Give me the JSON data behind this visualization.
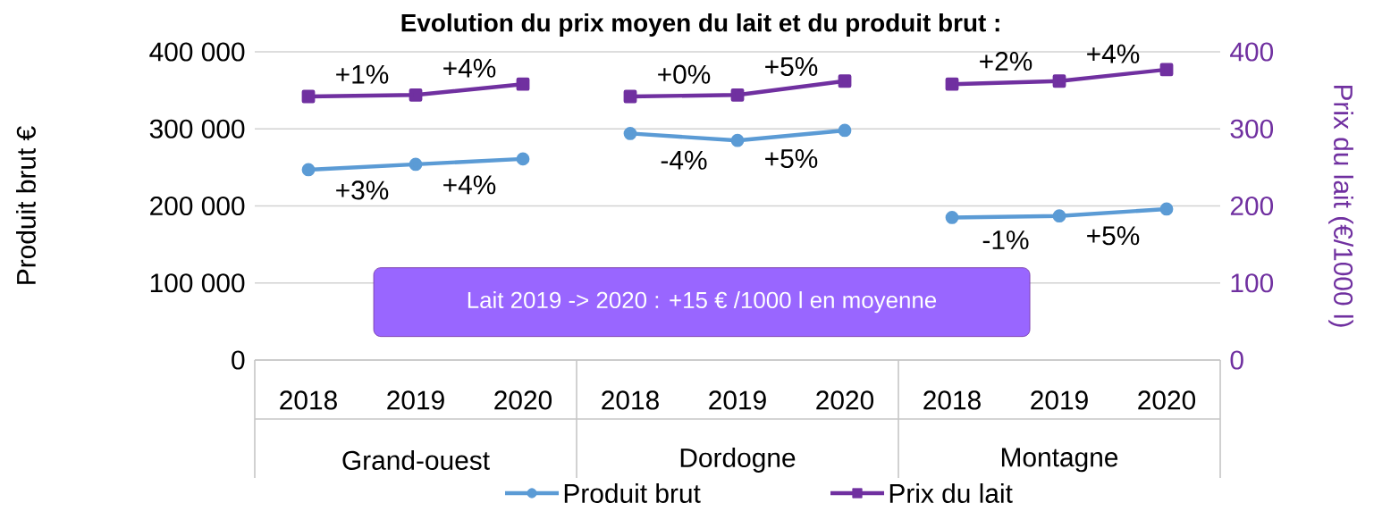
{
  "chart_data": {
    "type": "line",
    "title": "Evolution du prix moyen du lait et du produit brut :",
    "ylabel": "Produit brut €",
    "y2label": "Prix du lait (€/1000 l)",
    "categories": [
      "2018",
      "2019",
      "2020",
      "2018",
      "2019",
      "2020",
      "2018",
      "2019",
      "2020"
    ],
    "annotations": [
      "Lait 2019 -> 2020 : +15 € /1000 l en moyenne",
      "Grand-ouest",
      "Dordogne",
      "Montagne",
      "+3%",
      "+4%",
      "-4%",
      "+5%",
      "-1%",
      "+5%",
      "+1%",
      "+4%",
      "+0%",
      "+5%",
      "+2%",
      "+4%"
    ],
    "series": [
      {
        "name": "Produit brut",
        "color": "#5b9bd5",
        "marker": "circle",
        "values": [
          247000,
          254000,
          261000,
          294000,
          285000,
          298000,
          185000,
          187000,
          196000
        ]
      },
      {
        "name": "Prix du lait",
        "color": "#7030a0",
        "marker": "square",
        "axis": "y2",
        "values": [
          342,
          344,
          358,
          342,
          344,
          362,
          358,
          362,
          377
        ]
      }
    ],
    "ylim": [
      0,
      400000
    ],
    "yticks": [
      {
        "value": 0,
        "label": "0"
      },
      {
        "value": 100000,
        "label": "100 000"
      },
      {
        "value": 200000,
        "label": "200 000"
      },
      {
        "value": 300000,
        "label": "300 000"
      },
      {
        "value": 400000,
        "label": "400 000"
      }
    ],
    "y2lim": [
      0,
      400
    ],
    "y2ticks": [
      0,
      100,
      200,
      300,
      400
    ],
    "grid": true,
    "legend": "bottom"
  }
}
